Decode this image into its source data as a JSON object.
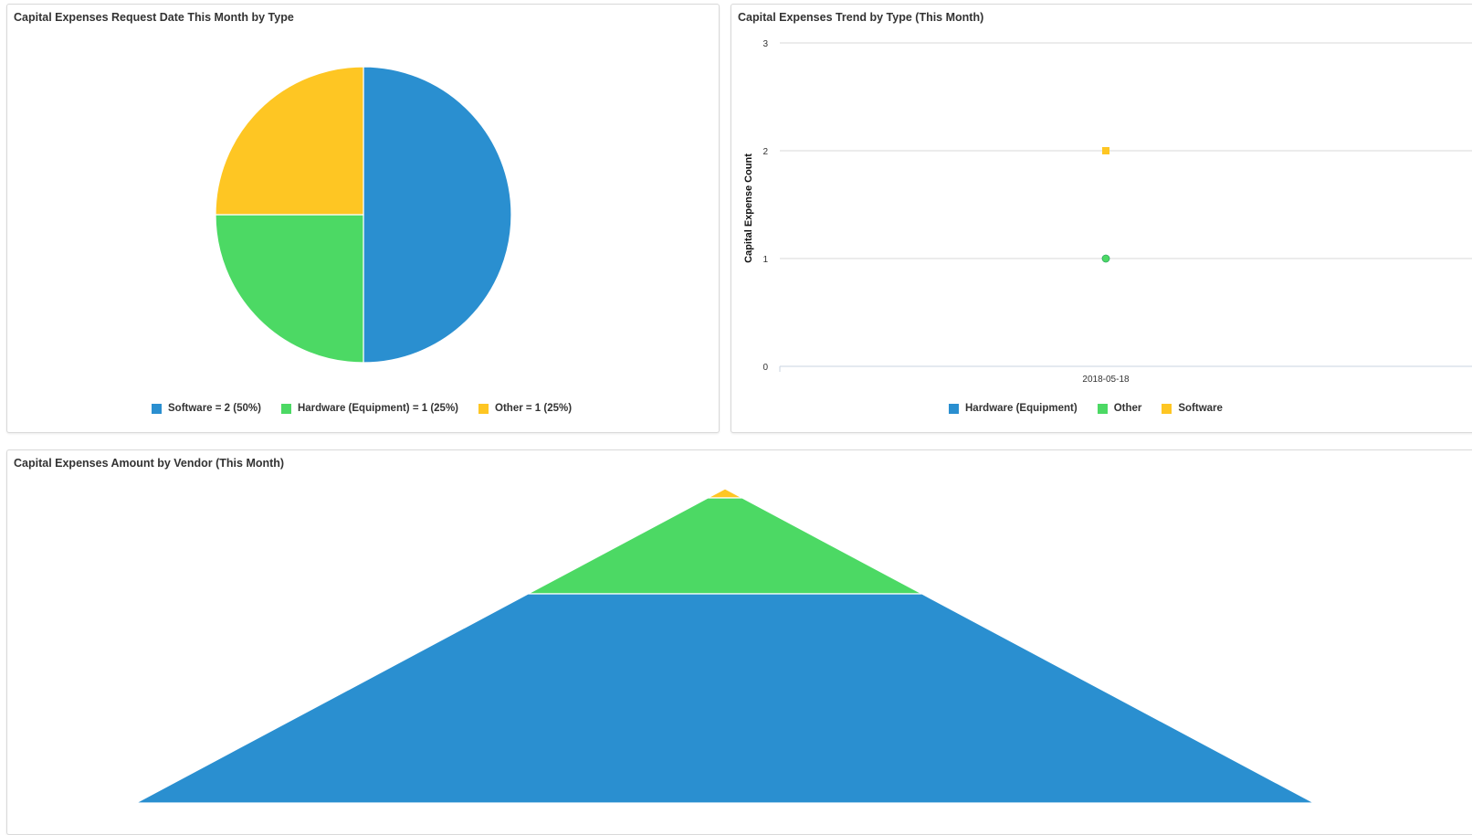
{
  "colors": {
    "software": "#2A8FD0",
    "hardware": "#4CD964",
    "other": "#FEC623",
    "funnel_blue": "#2A8FD0",
    "funnel_green": "#4CD964",
    "funnel_yellow": "#FEC623",
    "gridline": "#d9d9d9",
    "axis": "#c9d3e0"
  },
  "pie_panel": {
    "title": "Capital Expenses Request Date This Month by Type",
    "legend": [
      {
        "label": "Software = 2 (50%)",
        "color": "#2A8FD0"
      },
      {
        "label": "Hardware (Equipment) = 1 (25%)",
        "color": "#4CD964"
      },
      {
        "label": "Other = 1 (25%)",
        "color": "#FEC623"
      }
    ]
  },
  "trend_panel": {
    "title": "Capital Expenses Trend by Type (This Month)",
    "legend": [
      {
        "label": "Hardware (Equipment)",
        "color": "#2A8FD0"
      },
      {
        "label": "Other",
        "color": "#4CD964"
      },
      {
        "label": "Software",
        "color": "#FEC623"
      }
    ]
  },
  "funnel_panel": {
    "title": "Capital Expenses Amount by Vendor (This Month)"
  },
  "chart_data": [
    {
      "type": "pie",
      "title": "Capital Expenses Request Date This Month by Type",
      "slices": [
        {
          "label": "Software",
          "value": 2,
          "percent": 50,
          "color": "#2A8FD0"
        },
        {
          "label": "Hardware (Equipment)",
          "value": 1,
          "percent": 25,
          "color": "#4CD964"
        },
        {
          "label": "Other",
          "value": 1,
          "percent": 25,
          "color": "#FEC623"
        }
      ],
      "legend_position": "bottom"
    },
    {
      "type": "scatter",
      "title": "Capital Expenses Trend by Type (This Month)",
      "ylabel": "Capital Expense Count",
      "xlabel": "",
      "categories": [
        "2018-05-18"
      ],
      "yticks": [
        0,
        1,
        2,
        3
      ],
      "ylim": [
        0,
        3
      ],
      "grid": true,
      "legend_position": "bottom",
      "series": [
        {
          "name": "Hardware (Equipment)",
          "color": "#2A8FD0",
          "marker": "circle",
          "values": [
            1
          ]
        },
        {
          "name": "Other",
          "color": "#4CD964",
          "marker": "circle",
          "values": [
            1
          ]
        },
        {
          "name": "Software",
          "color": "#FEC623",
          "marker": "square",
          "values": [
            2
          ]
        }
      ]
    },
    {
      "type": "funnel",
      "title": "Capital Expenses Amount by Vendor (This Month)",
      "segments": [
        {
          "color": "#FEC623",
          "value": 1
        },
        {
          "color": "#4CD964",
          "value": 10
        },
        {
          "color": "#2A8FD0",
          "value": 40
        }
      ]
    }
  ]
}
